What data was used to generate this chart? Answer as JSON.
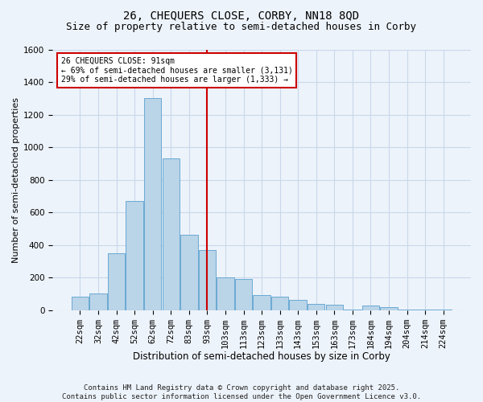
{
  "title1": "26, CHEQUERS CLOSE, CORBY, NN18 8QD",
  "title2": "Size of property relative to semi-detached houses in Corby",
  "xlabel": "Distribution of semi-detached houses by size in Corby",
  "ylabel": "Number of semi-detached properties",
  "footnote": "Contains HM Land Registry data © Crown copyright and database right 2025.\nContains public sector information licensed under the Open Government Licence v3.0.",
  "bin_labels": [
    "22sqm",
    "32sqm",
    "42sqm",
    "52sqm",
    "62sqm",
    "72sqm",
    "83sqm",
    "93sqm",
    "103sqm",
    "113sqm",
    "123sqm",
    "133sqm",
    "143sqm",
    "153sqm",
    "163sqm",
    "173sqm",
    "184sqm",
    "194sqm",
    "204sqm",
    "214sqm",
    "224sqm"
  ],
  "bar_values": [
    80,
    100,
    350,
    670,
    1300,
    930,
    460,
    370,
    200,
    190,
    90,
    80,
    60,
    40,
    35,
    5,
    30,
    20,
    5,
    5,
    5
  ],
  "bar_color": "#bad4e8",
  "bar_edge_color": "#6aaad4",
  "grid_color": "#c8d8ea",
  "background_color": "#edf3fa",
  "vline_color": "#cc0000",
  "annotation_text": "26 CHEQUERS CLOSE: 91sqm\n← 69% of semi-detached houses are smaller (3,131)\n29% of semi-detached houses are larger (1,333) →",
  "annotation_box_color": "#ffffff",
  "annotation_box_edge": "#cc0000",
  "ylim": [
    0,
    1600
  ],
  "yticks": [
    0,
    200,
    400,
    600,
    800,
    1000,
    1200,
    1400,
    1600
  ],
  "title1_fontsize": 10,
  "title2_fontsize": 9,
  "xlabel_fontsize": 8.5,
  "ylabel_fontsize": 8,
  "tick_fontsize": 7.5,
  "footnote_fontsize": 6.5
}
